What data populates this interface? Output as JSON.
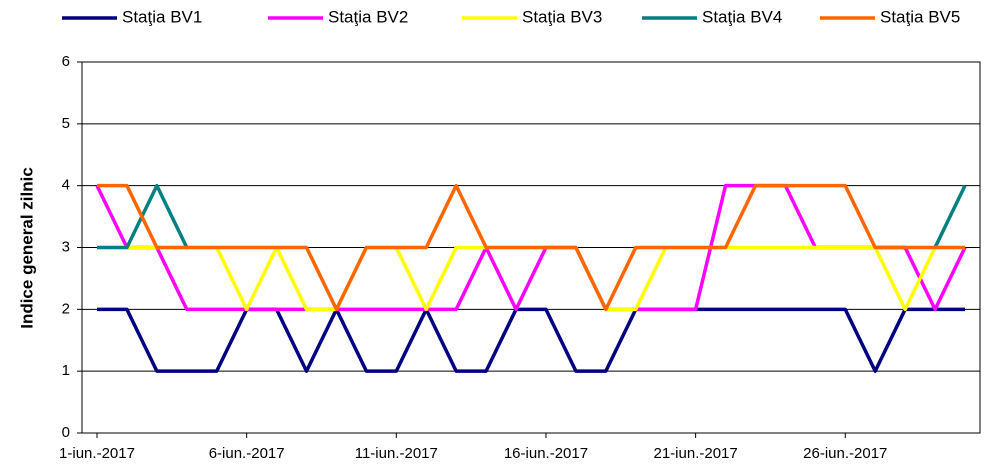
{
  "chart_data": {
    "type": "line",
    "y_label": "Indice general zilnic",
    "categories": [
      "1-iun.-2017",
      null,
      null,
      null,
      null,
      "6-iun.-2017",
      null,
      null,
      null,
      null,
      "11-iun.-2017",
      null,
      null,
      null,
      null,
      "16-iun.-2017",
      null,
      null,
      null,
      null,
      "21-iun.-2017",
      null,
      null,
      null,
      null,
      "26-iun.-2017",
      null,
      null,
      null,
      null
    ],
    "ylim": [
      0,
      6
    ],
    "yticks": [
      0,
      1,
      2,
      3,
      4,
      5,
      6
    ],
    "grid": true,
    "legend": "top",
    "series": [
      {
        "name": "Staţia BV1",
        "color": "#000080",
        "values": [
          2,
          2,
          1,
          1,
          1,
          2,
          2,
          1,
          2,
          1,
          1,
          2,
          1,
          1,
          2,
          2,
          1,
          1,
          2,
          2,
          2,
          2,
          2,
          2,
          2,
          2,
          1,
          2,
          2,
          2
        ]
      },
      {
        "name": "Staţia BV2",
        "color": "#ff00ff",
        "values": [
          4,
          3,
          3,
          2,
          2,
          2,
          2,
          2,
          2,
          2,
          2,
          2,
          2,
          3,
          2,
          3,
          3,
          2,
          2,
          2,
          2,
          4,
          4,
          4,
          3,
          3,
          3,
          3,
          2,
          3
        ]
      },
      {
        "name": "Staţia BV3",
        "color": "#ffff00",
        "values": [
          3,
          3,
          3,
          3,
          3,
          2,
          3,
          2,
          2,
          3,
          3,
          2,
          3,
          3,
          3,
          3,
          3,
          2,
          2,
          3,
          3,
          3,
          3,
          3,
          3,
          3,
          3,
          2,
          3,
          3
        ]
      },
      {
        "name": "Staţia BV4",
        "color": "#008080",
        "values": [
          3,
          3,
          4,
          3,
          null,
          null,
          null,
          null,
          null,
          null,
          null,
          null,
          null,
          null,
          null,
          null,
          null,
          null,
          null,
          null,
          null,
          null,
          null,
          null,
          null,
          null,
          null,
          null,
          3,
          4
        ]
      },
      {
        "name": "Staţia BV5",
        "color": "#ff6600",
        "values": [
          4,
          4,
          3,
          3,
          3,
          3,
          3,
          3,
          2,
          3,
          3,
          3,
          4,
          3,
          3,
          3,
          3,
          2,
          3,
          3,
          3,
          3,
          4,
          4,
          4,
          4,
          3,
          3,
          3,
          3
        ]
      }
    ]
  }
}
